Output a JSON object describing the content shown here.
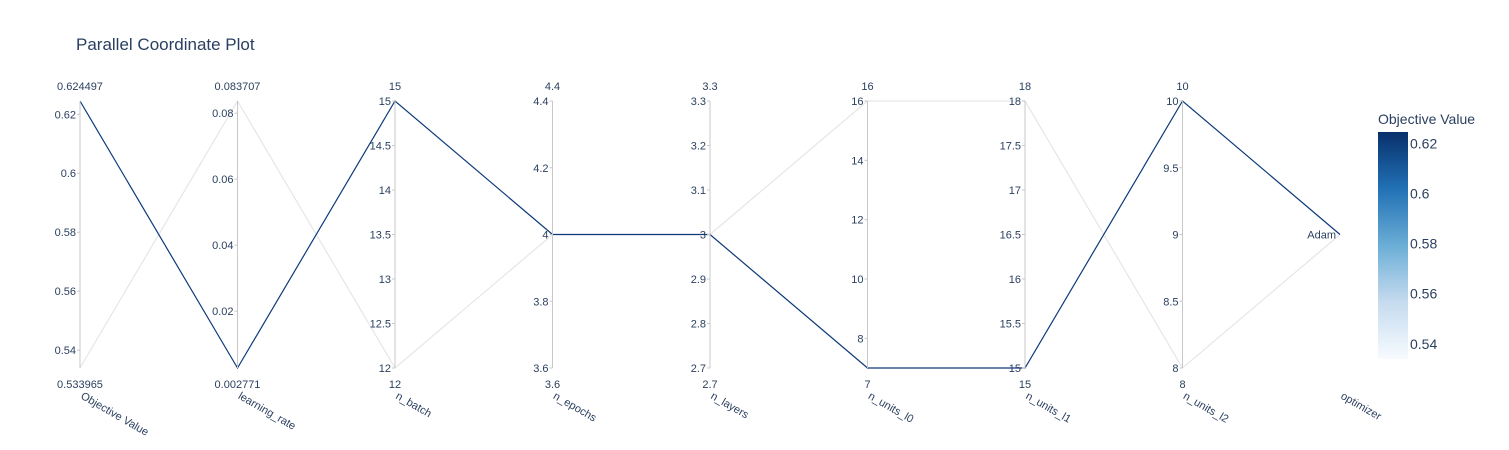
{
  "chart_data": {
    "type": "parallel_coordinates",
    "title": "Parallel Coordinate Plot",
    "dimensions": [
      {
        "label": "Objective Value",
        "range_labels": [
          "0.624497",
          "0.533965"
        ],
        "range": [
          0.533965,
          0.624497
        ],
        "ticks": [
          {
            "v": 0.54,
            "t": "0.54"
          },
          {
            "v": 0.56,
            "t": "0.56"
          },
          {
            "v": 0.58,
            "t": "0.58"
          },
          {
            "v": 0.6,
            "t": "0.6"
          },
          {
            "v": 0.62,
            "t": "0.62"
          }
        ]
      },
      {
        "label": "learning_rate",
        "range_labels": [
          "0.083707",
          "0.002771"
        ],
        "range": [
          0.002771,
          0.083707
        ],
        "ticks": [
          {
            "v": 0.02,
            "t": "0.02"
          },
          {
            "v": 0.04,
            "t": "0.04"
          },
          {
            "v": 0.06,
            "t": "0.06"
          },
          {
            "v": 0.08,
            "t": "0.08"
          }
        ]
      },
      {
        "label": "n_batch",
        "range_labels": [
          "15",
          "12"
        ],
        "range": [
          12,
          15
        ],
        "ticks": [
          {
            "v": 12,
            "t": "12"
          },
          {
            "v": 12.5,
            "t": "12.5"
          },
          {
            "v": 13,
            "t": "13"
          },
          {
            "v": 13.5,
            "t": "13.5"
          },
          {
            "v": 14,
            "t": "14"
          },
          {
            "v": 14.5,
            "t": "14.5"
          },
          {
            "v": 15,
            "t": "15"
          }
        ]
      },
      {
        "label": "n_epochs",
        "range_labels": [
          "4.4",
          "3.6"
        ],
        "range": [
          3.6,
          4.4
        ],
        "ticks": [
          {
            "v": 3.6,
            "t": "3.6"
          },
          {
            "v": 3.8,
            "t": "3.8"
          },
          {
            "v": 4,
            "t": "4"
          },
          {
            "v": 4.2,
            "t": "4.2"
          },
          {
            "v": 4.4,
            "t": "4.4"
          }
        ]
      },
      {
        "label": "n_layers",
        "range_labels": [
          "3.3",
          "2.7"
        ],
        "range": [
          2.7,
          3.3
        ],
        "ticks": [
          {
            "v": 2.7,
            "t": "2.7"
          },
          {
            "v": 2.8,
            "t": "2.8"
          },
          {
            "v": 2.9,
            "t": "2.9"
          },
          {
            "v": 3,
            "t": "3"
          },
          {
            "v": 3.1,
            "t": "3.1"
          },
          {
            "v": 3.2,
            "t": "3.2"
          },
          {
            "v": 3.3,
            "t": "3.3"
          }
        ]
      },
      {
        "label": "n_units_l0",
        "range_labels": [
          "16",
          "7"
        ],
        "range": [
          7,
          16
        ],
        "ticks": [
          {
            "v": 8,
            "t": "8"
          },
          {
            "v": 10,
            "t": "10"
          },
          {
            "v": 12,
            "t": "12"
          },
          {
            "v": 14,
            "t": "14"
          },
          {
            "v": 16,
            "t": "16"
          }
        ]
      },
      {
        "label": "n_units_l1",
        "range_labels": [
          "18",
          "15"
        ],
        "range": [
          15,
          18
        ],
        "ticks": [
          {
            "v": 15,
            "t": "15"
          },
          {
            "v": 15.5,
            "t": "15.5"
          },
          {
            "v": 16,
            "t": "16"
          },
          {
            "v": 16.5,
            "t": "16.5"
          },
          {
            "v": 17,
            "t": "17"
          },
          {
            "v": 17.5,
            "t": "17.5"
          },
          {
            "v": 18,
            "t": "18"
          }
        ]
      },
      {
        "label": "n_units_l2",
        "range_labels": [
          "10",
          "8"
        ],
        "range": [
          8,
          10
        ],
        "ticks": [
          {
            "v": 8,
            "t": "8"
          },
          {
            "v": 8.5,
            "t": "8.5"
          },
          {
            "v": 9,
            "t": "9"
          },
          {
            "v": 9.5,
            "t": "9.5"
          },
          {
            "v": 10,
            "t": "10"
          }
        ]
      },
      {
        "label": "optimizer",
        "range_labels": [
          "",
          ""
        ],
        "range": [
          8.5,
          9.5
        ],
        "ticks": [
          {
            "v": 9,
            "t": "Adam"
          }
        ]
      }
    ],
    "series": [
      {
        "values": [
          0.624497,
          0.002771,
          15,
          4,
          3,
          7,
          15,
          10,
          9
        ],
        "objective": 0.624497,
        "color": "#0d3a7a"
      },
      {
        "values": [
          0.533965,
          0.083707,
          12,
          4,
          3,
          16,
          18,
          8,
          9
        ],
        "objective": 0.533965,
        "color": "#e6e6e9"
      }
    ],
    "colorbar": {
      "title": "Objective Value",
      "range": [
        0.533965,
        0.624497
      ],
      "ticks": [
        {
          "v": 0.54,
          "t": "0.54"
        },
        {
          "v": 0.56,
          "t": "0.56"
        },
        {
          "v": 0.58,
          "t": "0.58"
        },
        {
          "v": 0.6,
          "t": "0.6"
        },
        {
          "v": 0.62,
          "t": "0.62"
        }
      ],
      "colors": [
        "#f7fbff",
        "#c6dbef",
        "#6baed6",
        "#2171b5",
        "#08306b"
      ]
    }
  }
}
